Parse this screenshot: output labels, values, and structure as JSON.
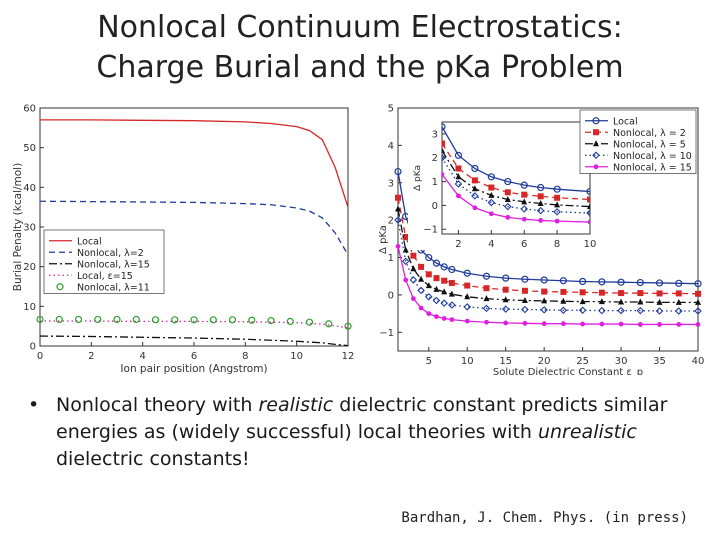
{
  "slide": {
    "title_line1": "Nonlocal Continuum Electrostatics:",
    "title_line2": "Charge Burial and the pKa Problem",
    "bullet_symbol": "•",
    "bullet_part1": "Nonlocal theory with ",
    "bullet_em1": "realistic",
    "bullet_part2": " dielectric constant predicts similar energies as (widely successful) local theories with ",
    "bullet_em2": "unrealistic",
    "bullet_part3": " dielectric constants!",
    "citation": "Bardhan, J. Chem. Phys. (in press)"
  },
  "chart_data": [
    {
      "type": "line",
      "xlabel": "Ion pair position (Angstrom)",
      "ylabel": "Burial Penalty (kcal/mol)",
      "xlim": [
        0,
        12
      ],
      "ylim": [
        0,
        60
      ],
      "xticks": [
        0,
        2,
        4,
        6,
        8,
        10,
        12
      ],
      "yticks": [
        0,
        10,
        20,
        30,
        40,
        50,
        60
      ],
      "legend_position": "bottom-left",
      "series": [
        {
          "name": "Local",
          "color": "#d62728",
          "style": "solid",
          "marker": "none",
          "x": [
            0,
            2,
            4,
            6,
            8,
            9,
            10,
            10.5,
            11,
            11.5,
            12
          ],
          "y": [
            57,
            57,
            56.9,
            56.8,
            56.5,
            56.1,
            55.3,
            54.3,
            52,
            45,
            35
          ]
        },
        {
          "name": "Nonlocal, λ=2",
          "color": "#1f3b9a",
          "style": "dashed",
          "marker": "none",
          "x": [
            0,
            2,
            4,
            6,
            8,
            9,
            10,
            10.5,
            11,
            11.5,
            12
          ],
          "y": [
            36.5,
            36.4,
            36.3,
            36.2,
            35.9,
            35.6,
            34.8,
            34,
            32.3,
            28.5,
            23
          ]
        },
        {
          "name": "Nonlocal, λ=15",
          "color": "#111111",
          "style": "dashdot",
          "marker": "none",
          "x": [
            0,
            2,
            4,
            6,
            8,
            10,
            11,
            11.5,
            12
          ],
          "y": [
            2.5,
            2.4,
            2.2,
            2.0,
            1.7,
            1.2,
            0.8,
            0.4,
            0.1
          ]
        },
        {
          "name": "Local, ε=15",
          "color": "#d62790",
          "style": "dotted",
          "marker": "none",
          "x": [
            0,
            2,
            4,
            6,
            8,
            10,
            11,
            12
          ],
          "y": [
            6.3,
            6.3,
            6.2,
            6.2,
            6.1,
            5.9,
            5.5,
            4.6
          ]
        },
        {
          "name": "Nonlocal, λ=11",
          "color": "#2ca02c",
          "style": "none",
          "marker": "circle",
          "x": [
            0,
            0.75,
            1.5,
            2.25,
            3,
            3.75,
            4.5,
            5.25,
            6,
            6.75,
            7.5,
            8.25,
            9,
            9.75,
            10.5,
            11.25,
            12
          ],
          "y": [
            6.7,
            6.7,
            6.7,
            6.7,
            6.7,
            6.7,
            6.6,
            6.6,
            6.6,
            6.6,
            6.6,
            6.5,
            6.4,
            6.2,
            6,
            5.6,
            5
          ]
        }
      ]
    },
    {
      "type": "line",
      "xlabel": "Solute Dielectric Constant ε_p",
      "ylabel": "Δ pKa",
      "xlim": [
        1,
        40
      ],
      "ylim": [
        -1.5,
        5
      ],
      "xticks": [
        5,
        10,
        15,
        20,
        25,
        30,
        35,
        40
      ],
      "yticks": [
        -1,
        0,
        1,
        2,
        3,
        4,
        5
      ],
      "ytick_labels": [
        "−1",
        "0",
        "1",
        "2",
        "3",
        "4",
        "5"
      ],
      "legend_position": "top-right",
      "series": [
        {
          "name": "Local",
          "color": "#1f3b9a",
          "style": "solid",
          "marker": "circle",
          "x": [
            1,
            2,
            3,
            4,
            5,
            6,
            7,
            8,
            10,
            12.5,
            15,
            17.5,
            20,
            22.5,
            25,
            27.5,
            30,
            32.5,
            35,
            37.5,
            40
          ],
          "y": [
            3.3,
            2.1,
            1.55,
            1.2,
            1.0,
            0.85,
            0.75,
            0.68,
            0.58,
            0.5,
            0.45,
            0.42,
            0.4,
            0.38,
            0.36,
            0.35,
            0.34,
            0.33,
            0.32,
            0.31,
            0.3
          ]
        },
        {
          "name": "Nonlocal, λ = 2",
          "color": "#d62728",
          "style": "dashed",
          "marker": "square",
          "x": [
            1,
            2,
            3,
            4,
            5,
            6,
            7,
            8,
            10,
            12.5,
            15,
            17.5,
            20,
            22.5,
            25,
            27.5,
            30,
            32.5,
            35,
            37.5,
            40
          ],
          "y": [
            2.6,
            1.55,
            1.05,
            0.75,
            0.55,
            0.45,
            0.38,
            0.32,
            0.25,
            0.18,
            0.14,
            0.11,
            0.09,
            0.08,
            0.07,
            0.06,
            0.05,
            0.05,
            0.04,
            0.04,
            0.03
          ]
        },
        {
          "name": "Nonlocal, λ = 5",
          "color": "#111111",
          "style": "dashdot",
          "marker": "triangle",
          "x": [
            1,
            2,
            3,
            4,
            5,
            6,
            7,
            8,
            10,
            12.5,
            15,
            17.5,
            20,
            22.5,
            25,
            27.5,
            30,
            32.5,
            35,
            37.5,
            40
          ],
          "y": [
            2.3,
            1.2,
            0.7,
            0.42,
            0.25,
            0.15,
            0.08,
            0.02,
            -0.05,
            -0.1,
            -0.13,
            -0.15,
            -0.16,
            -0.17,
            -0.18,
            -0.18,
            -0.19,
            -0.19,
            -0.2,
            -0.2,
            -0.2
          ]
        },
        {
          "name": "Nonlocal, λ = 10",
          "color": "#1f3b9a",
          "style": "dotted",
          "marker": "diamond",
          "x": [
            1,
            2,
            3,
            4,
            5,
            6,
            7,
            8,
            10,
            12.5,
            15,
            17.5,
            20,
            22.5,
            25,
            27.5,
            30,
            32.5,
            35,
            37.5,
            40
          ],
          "y": [
            2.0,
            0.9,
            0.4,
            0.12,
            -0.05,
            -0.15,
            -0.22,
            -0.27,
            -0.32,
            -0.36,
            -0.38,
            -0.39,
            -0.4,
            -0.41,
            -0.41,
            -0.42,
            -0.42,
            -0.42,
            -0.43,
            -0.43,
            -0.43
          ]
        },
        {
          "name": "Nonlocal, λ = 15",
          "color": "#e020e0",
          "style": "solid",
          "marker": "star",
          "x": [
            1,
            2,
            3,
            4,
            5,
            6,
            7,
            8,
            10,
            12.5,
            15,
            17.5,
            20,
            22.5,
            25,
            27.5,
            30,
            32.5,
            35,
            37.5,
            40
          ],
          "y": [
            1.3,
            0.4,
            -0.1,
            -0.35,
            -0.5,
            -0.58,
            -0.63,
            -0.66,
            -0.7,
            -0.73,
            -0.75,
            -0.76,
            -0.77,
            -0.77,
            -0.78,
            -0.78,
            -0.78,
            -0.79,
            -0.79,
            -0.79,
            -0.79
          ]
        }
      ],
      "inset": {
        "xlim": [
          1,
          10
        ],
        "ylim": [
          -1.2,
          3.5
        ],
        "xticks": [
          2,
          4,
          6,
          8,
          10
        ],
        "yticks": [
          -1,
          0,
          1,
          2,
          3
        ],
        "ytick_labels": [
          "−1",
          "0",
          "1",
          "2",
          "3"
        ],
        "ylabel": "Δ pKa"
      }
    }
  ]
}
